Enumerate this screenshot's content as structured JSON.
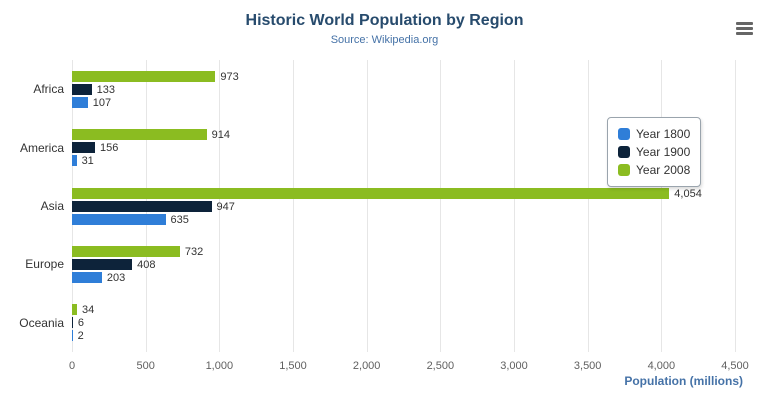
{
  "icons": {
    "export_menu": "hamburger-menu-icon"
  },
  "chart_data": {
    "type": "bar",
    "title": "Historic World Population by Region",
    "subtitle": "Source: Wikipedia.org",
    "categories": [
      "Africa",
      "America",
      "Asia",
      "Europe",
      "Oceania"
    ],
    "series": [
      {
        "name": "Year 1800",
        "color": "#2f7ed8",
        "values": [
          107,
          31,
          635,
          203,
          2
        ]
      },
      {
        "name": "Year 1900",
        "color": "#0d233a",
        "values": [
          133,
          156,
          947,
          408,
          6
        ]
      },
      {
        "name": "Year 2008",
        "color": "#8bbc21",
        "values": [
          973,
          914,
          4054,
          732,
          34
        ]
      }
    ],
    "xlabel": "Population (millions)",
    "ylabel": "",
    "xlim": [
      0,
      4500
    ],
    "xticks": [
      0,
      500,
      1000,
      1500,
      2000,
      2500,
      3000,
      3500,
      4000,
      4500
    ],
    "tick_labels": [
      "0",
      "500",
      "1,000",
      "1,500",
      "2,000",
      "2,500",
      "3,000",
      "3,500",
      "4,000",
      "4,500"
    ],
    "grid": true,
    "legend_position": "right",
    "colors": {
      "title": "#274b6d",
      "subtitle": "#4572a7",
      "axis_title": "#4572a7",
      "gridline": "#e6e6e6",
      "tick_label": "#606060"
    }
  }
}
